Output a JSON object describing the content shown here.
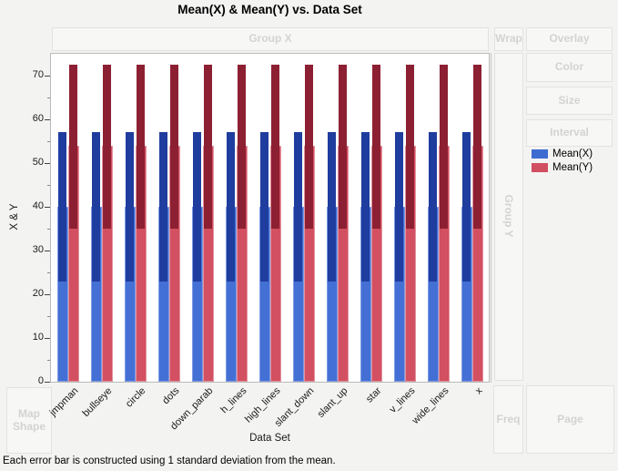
{
  "title": "Mean(X) & Mean(Y) vs. Data Set",
  "drop_zones": {
    "group_x": "Group X",
    "wrap": "Wrap",
    "overlay": "Overlay",
    "color": "Color",
    "size": "Size",
    "interval": "Interval",
    "group_y": "Group Y",
    "map_shape": "Map Shape",
    "freq": "Freq",
    "page": "Page"
  },
  "legend": {
    "items": [
      {
        "label": "Mean(X)",
        "color": "#3f6cd1"
      },
      {
        "label": "Mean(Y)",
        "color": "#d04f60"
      }
    ]
  },
  "footer_note": "Each error bar is constructed using 1 standard deviation from the mean.",
  "chart_data": {
    "type": "bar",
    "title": "Mean(X) & Mean(Y) vs. Data Set",
    "xlabel": "Data Set",
    "ylabel": "X & Y",
    "ylim": [
      0,
      75
    ],
    "yticks": [
      0,
      10,
      20,
      30,
      40,
      50,
      60,
      70
    ],
    "minor_tick_step": 5,
    "grid": false,
    "legend_position": "right",
    "error_note": "1 standard deviation from the mean",
    "categories": [
      "jmpman",
      "bullseye",
      "circle",
      "dots",
      "down_parab",
      "h_lines",
      "high_lines",
      "slant_down",
      "slant_up",
      "star",
      "v_lines",
      "wide_lines",
      "x"
    ],
    "series": [
      {
        "name": "Mean(X)",
        "bar_color": "#4470d5",
        "bar_edge_color": "#7d9be4",
        "error_color": "#1f3d9e",
        "values": [
          40,
          40,
          40,
          40,
          40,
          40,
          40,
          40,
          40,
          40,
          40,
          40,
          40
        ],
        "error_low": [
          23,
          23,
          23,
          23,
          23,
          23,
          23,
          23,
          23,
          23,
          23,
          23,
          23
        ],
        "error_high": [
          57,
          57,
          57,
          57,
          57,
          57,
          57,
          57,
          57,
          57,
          57,
          57,
          57
        ]
      },
      {
        "name": "Mean(Y)",
        "bar_color": "#d25061",
        "bar_edge_color": "#e2939e",
        "error_color": "#8c2032",
        "values": [
          54,
          54,
          54,
          54,
          54,
          54,
          54,
          54,
          54,
          54,
          54,
          54,
          54
        ],
        "error_low": [
          35,
          35,
          35,
          35,
          35,
          35,
          35,
          35,
          35,
          35,
          35,
          35,
          35
        ],
        "error_high": [
          72.5,
          72.5,
          72.5,
          72.5,
          72.5,
          72.5,
          72.5,
          72.5,
          72.5,
          72.5,
          72.5,
          72.5,
          72.5
        ]
      }
    ]
  }
}
